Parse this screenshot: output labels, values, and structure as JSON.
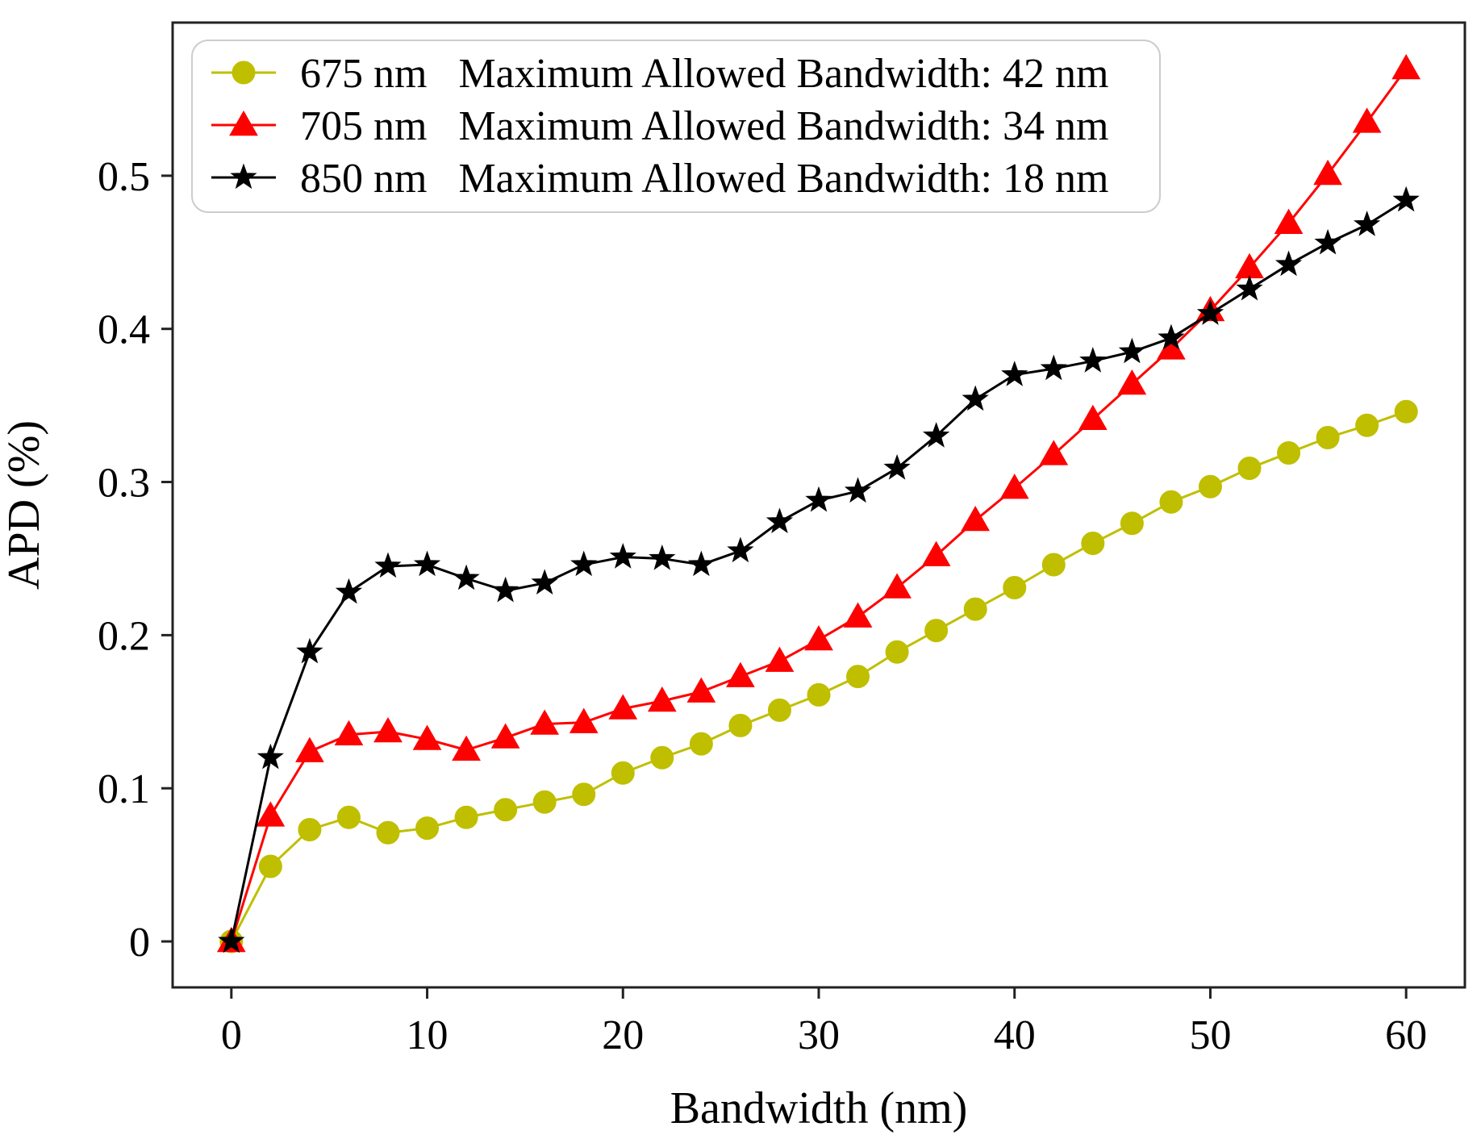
{
  "chart_data": {
    "type": "line",
    "title": "",
    "xlabel": "Bandwidth (nm)",
    "ylabel": "APD (%)",
    "xlim": [
      -3,
      63
    ],
    "ylim": [
      -0.03,
      0.6
    ],
    "xticks": [
      0,
      10,
      20,
      30,
      40,
      50,
      60
    ],
    "xtick_labels": [
      "0",
      "10",
      "20",
      "30",
      "40",
      "50",
      "60"
    ],
    "yticks": [
      0,
      0.1,
      0.2,
      0.3,
      0.4,
      0.5
    ],
    "ytick_labels": [
      "0",
      "0.1",
      "0.2",
      "0.3",
      "0.4",
      "0.5"
    ],
    "grid": false,
    "legend_position": "top-left",
    "x": [
      0,
      2,
      4,
      6,
      8,
      10,
      12,
      14,
      16,
      18,
      20,
      22,
      24,
      26,
      28,
      30,
      32,
      34,
      36,
      38,
      40,
      42,
      44,
      46,
      48,
      50,
      52,
      54,
      56,
      58,
      60
    ],
    "series": [
      {
        "name": "675 nm",
        "legend_label": "675 nm   Maximum Allowed Bandwidth: 42 nm",
        "color": "#bfbf00",
        "marker": "circle",
        "values": [
          0.0,
          0.049,
          0.073,
          0.081,
          0.071,
          0.074,
          0.081,
          0.086,
          0.091,
          0.096,
          0.11,
          0.12,
          0.129,
          0.141,
          0.151,
          0.161,
          0.173,
          0.189,
          0.203,
          0.217,
          0.231,
          0.246,
          0.26,
          0.273,
          0.287,
          0.297,
          0.309,
          0.319,
          0.329,
          0.337,
          0.346
        ]
      },
      {
        "name": "705 nm",
        "legend_label": "705 nm   Maximum Allowed Bandwidth: 34 nm",
        "color": "#ff0000",
        "marker": "triangle",
        "values": [
          0.0,
          0.082,
          0.124,
          0.135,
          0.137,
          0.132,
          0.125,
          0.133,
          0.142,
          0.143,
          0.152,
          0.157,
          0.163,
          0.173,
          0.183,
          0.197,
          0.212,
          0.231,
          0.252,
          0.275,
          0.296,
          0.318,
          0.341,
          0.364,
          0.387,
          0.412,
          0.44,
          0.469,
          0.501,
          0.535,
          0.57
        ]
      },
      {
        "name": "850 nm",
        "legend_label": "850 nm   Maximum Allowed Bandwidth: 18 nm",
        "color": "#000000",
        "marker": "star",
        "values": [
          0.0,
          0.12,
          0.189,
          0.228,
          0.245,
          0.246,
          0.237,
          0.229,
          0.234,
          0.246,
          0.251,
          0.25,
          0.246,
          0.255,
          0.274,
          0.288,
          0.294,
          0.309,
          0.33,
          0.354,
          0.37,
          0.374,
          0.379,
          0.385,
          0.394,
          0.41,
          0.426,
          0.442,
          0.456,
          0.468,
          0.484
        ]
      }
    ]
  }
}
